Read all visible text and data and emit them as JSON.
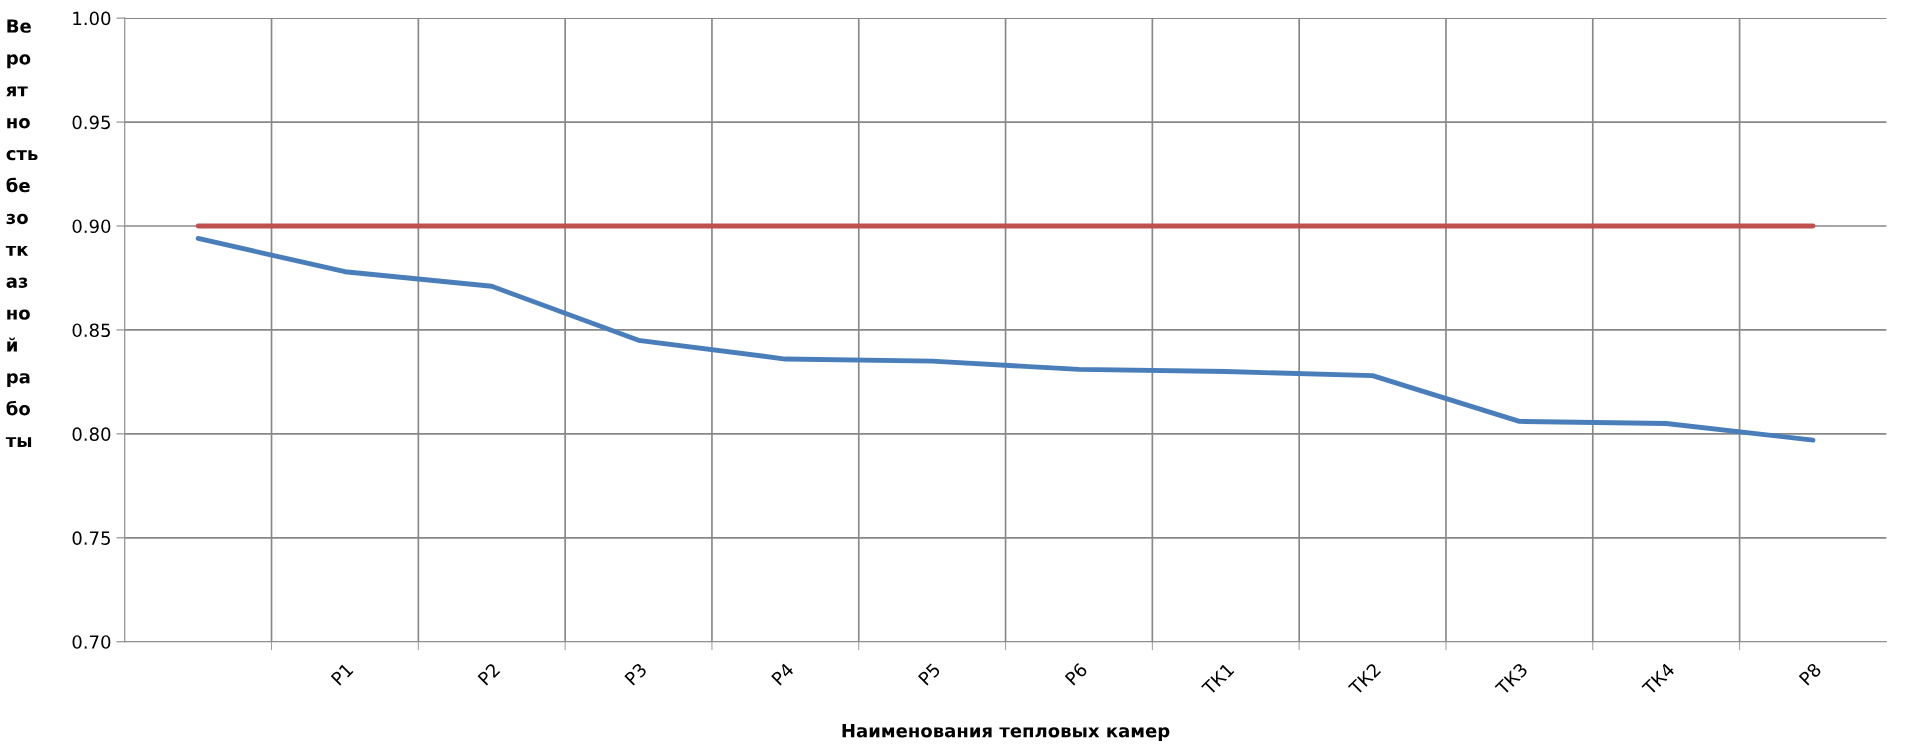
{
  "chart_data": {
    "type": "line",
    "xlabel": "Наименования тепловых камер",
    "ylabel": "Ве\nро\nят\nно\nсть\nбе\nзо\nтк\nаз\nно\nй\nра\nбо\nты",
    "categories": [
      null,
      "Р1",
      "Р2",
      "Р3",
      "Р4",
      "Р5",
      "Р6",
      "ТК1",
      "ТК2",
      "ТК3",
      "ТК4",
      "Р8"
    ],
    "series": [
      {
        "color": "#4a7ebb",
        "values": [
          0.894,
          0.878,
          0.871,
          0.845,
          0.836,
          0.835,
          0.831,
          0.83,
          0.828,
          0.806,
          0.805,
          0.797
        ]
      },
      {
        "color": "#c0504d",
        "values": [
          0.9,
          0.9,
          0.9,
          0.9,
          0.9,
          0.9,
          0.9,
          0.9,
          0.9,
          0.9,
          0.9,
          0.9
        ]
      }
    ],
    "ylim": [
      0.7,
      1.0
    ],
    "yticks": [
      {
        "value": 0.7,
        "label": "0.70"
      },
      {
        "value": 0.75,
        "label": "0.75"
      },
      {
        "value": 0.8,
        "label": "0.80"
      },
      {
        "value": 0.85,
        "label": "0.85"
      },
      {
        "value": 0.9,
        "label": "0.90"
      },
      {
        "value": 0.95,
        "label": "0.95"
      },
      {
        "value": 1.0,
        "label": "1.00"
      }
    ],
    "grid": true,
    "marker": "none",
    "line_style": "solid"
  }
}
